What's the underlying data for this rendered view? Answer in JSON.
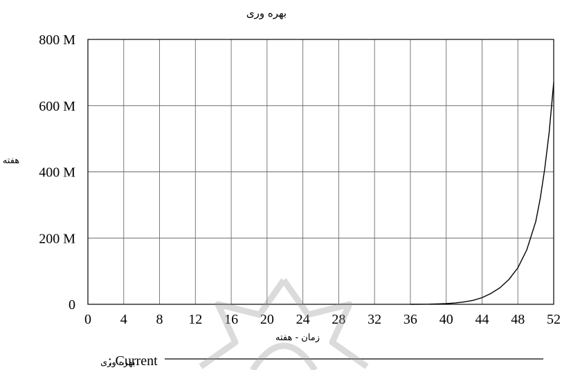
{
  "chart_data": {
    "type": "line",
    "title": "بهره وری",
    "xlabel": "زمان - هفته",
    "ylabel": "هفته",
    "x_ticks": [
      0,
      4,
      8,
      12,
      16,
      20,
      24,
      28,
      32,
      36,
      40,
      44,
      48,
      52
    ],
    "y_ticks": [
      0,
      200,
      400,
      600,
      800
    ],
    "y_tick_labels": [
      "0",
      "200 M",
      "400 M",
      "600 M",
      "800 M"
    ],
    "xlim": [
      0,
      52
    ],
    "ylim": [
      0,
      800
    ],
    "y_units": "M",
    "grid": true,
    "line_color": "#000000",
    "series": [
      {
        "name": "بهره وری",
        "run": ": Current",
        "x": [
          36,
          38,
          40,
          41,
          42,
          43,
          44,
          45,
          46,
          47,
          48,
          49,
          50,
          50.5,
          51,
          51.5,
          52
        ],
        "y": [
          0,
          0.5,
          2,
          4,
          7,
          12,
          20,
          33,
          50,
          75,
          110,
          165,
          250,
          320,
          410,
          520,
          670
        ]
      }
    ]
  }
}
